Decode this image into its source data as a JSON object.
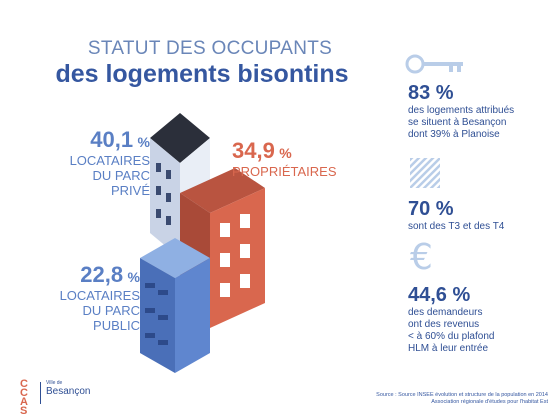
{
  "title": {
    "line1": "STATUT DES OCCUPANTS",
    "line2": "des logements bisontins"
  },
  "stats": {
    "prive": {
      "value": "40,1",
      "unit": "%",
      "l1": "LOCATAIRES",
      "l2": "DU PARC",
      "l3": "PRIVÉ"
    },
    "proprietaires": {
      "value": "34,9",
      "unit": "%",
      "l1": "PROPRIÉTAIRES"
    },
    "public": {
      "value": "22,8",
      "unit": "%",
      "l1": "LOCATAIRES",
      "l2": "DU PARC",
      "l3": "PUBLIC"
    }
  },
  "facts": [
    {
      "value": "83 %",
      "l1": "des logements attribués",
      "l2": "se situent à Besançon",
      "l3": "dont 39% à Planoise",
      "icon": "key-icon"
    },
    {
      "value": "70 %",
      "l1": "sont des T3 et des T4",
      "icon": "hatched-square-icon"
    },
    {
      "value": "44,6 %",
      "l1": "des demandeurs",
      "l2": "ont des revenus",
      "l3": "< à 60% du plafond",
      "l4": "HLM à leur entrée",
      "icon": "euro-icon"
    }
  ],
  "footer": {
    "logo": "CCAS",
    "city_small": "Ville de",
    "city": "Besançon",
    "source1": "Source : Source INSEE évolution et structure de la population en 2014",
    "source2": "Association régionale d'études pour l'habitat Est"
  },
  "colors": {
    "blue_dark": "#2f4f94",
    "blue_light": "#5a7fc4",
    "red": "#d9674e",
    "icon_light": "#b9cde8"
  }
}
